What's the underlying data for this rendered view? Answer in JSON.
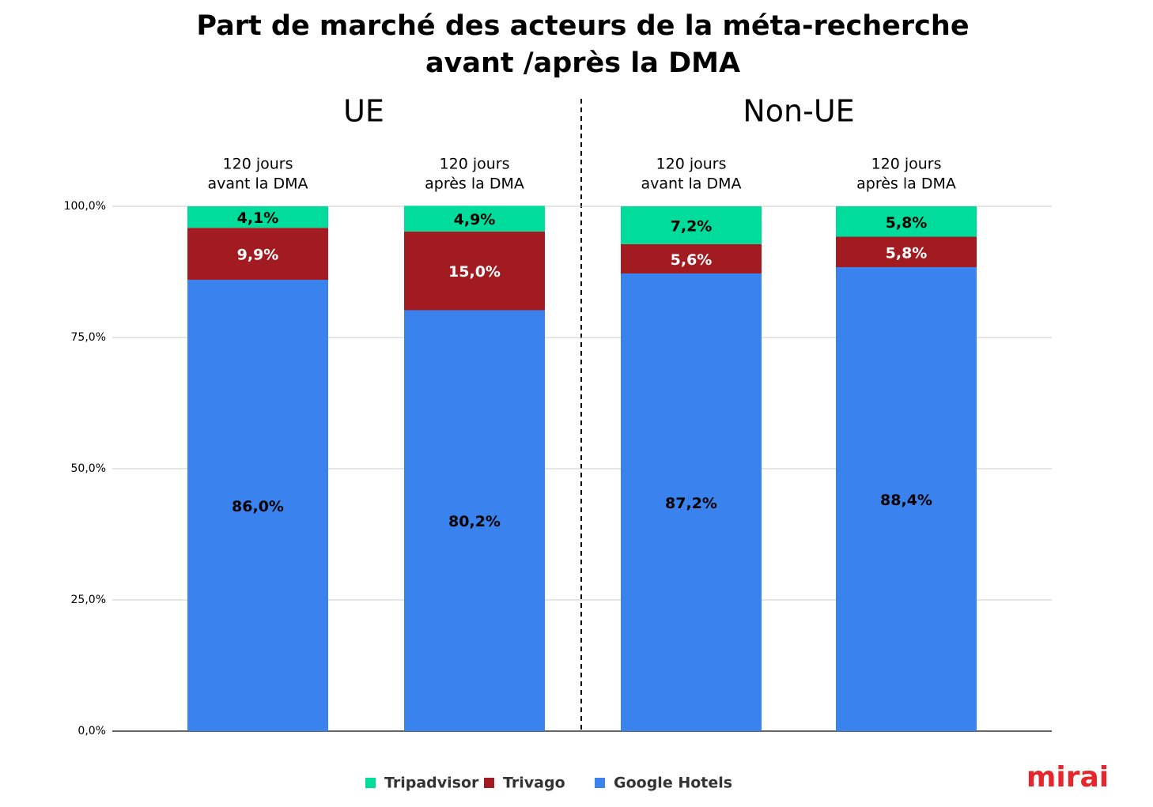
{
  "chart_data": {
    "type": "stacked_bar",
    "title": [
      "Part de marché des acteurs de la méta-recherche",
      "avant /après la DMA"
    ],
    "group_labels": [
      "UE",
      "Non-UE"
    ],
    "categories": [
      [
        "120 jours",
        "avant la DMA"
      ],
      [
        "120 jours",
        "après la DMA"
      ],
      [
        "120 jours",
        "avant la DMA"
      ],
      [
        "120 jours",
        "après la DMA"
      ]
    ],
    "series": [
      {
        "name": "Tripadvisor",
        "color": "#00dc9c",
        "label_color": "#000000",
        "values": [
          4.1,
          4.9,
          7.2,
          5.8
        ],
        "value_labels": [
          "4,1%",
          "4,9%",
          "7,2%",
          "5,8%"
        ]
      },
      {
        "name": "Trivago",
        "color": "#a11b21",
        "label_color": "#ffffff",
        "values": [
          9.9,
          15.0,
          5.6,
          5.8
        ],
        "value_labels": [
          "9,9%",
          "15,0%",
          "5,6%",
          "5,8%"
        ]
      },
      {
        "name": "Google Hotels",
        "color": "#3a83ee",
        "label_color": "#000000",
        "values": [
          86.0,
          80.2,
          87.2,
          88.4
        ],
        "value_labels": [
          "86,0%",
          "80,2%",
          "87,2%",
          "88,4%"
        ]
      }
    ],
    "ylim": [
      0,
      100
    ],
    "yticks": [
      {
        "value": 0,
        "label": "0,0%"
      },
      {
        "value": 25,
        "label": "25,0%"
      },
      {
        "value": 50,
        "label": "50,0%"
      },
      {
        "value": 75,
        "label": "75,0%"
      },
      {
        "value": 100,
        "label": "100,0%"
      }
    ],
    "grid": true,
    "legend": "bottom",
    "logo": "mirai"
  }
}
